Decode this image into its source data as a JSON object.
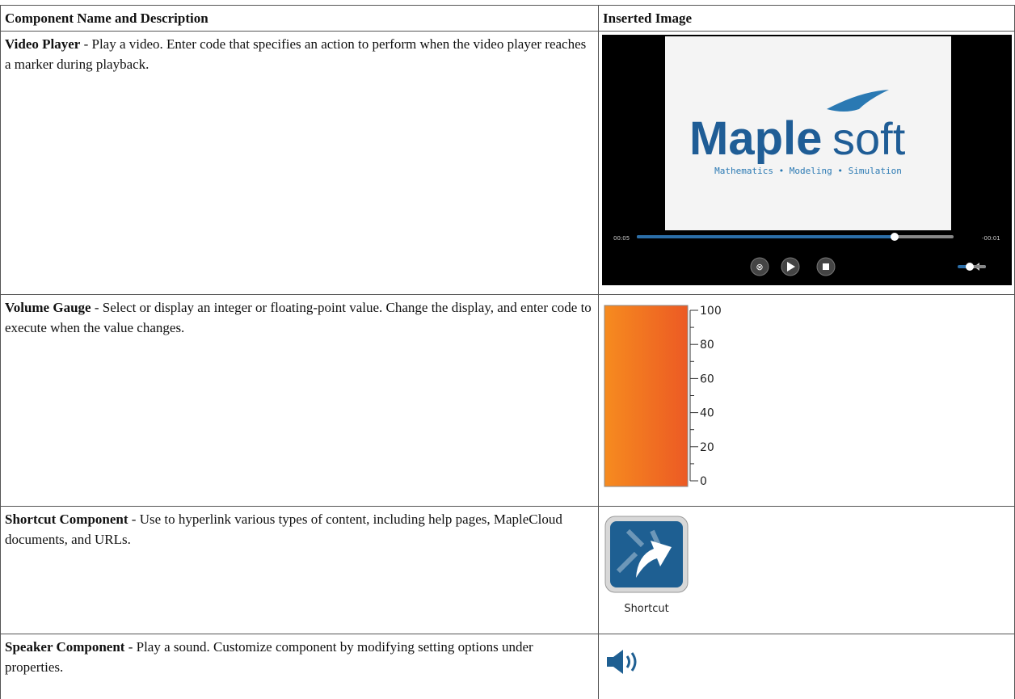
{
  "header": {
    "columns": [
      "Component Name and Description",
      "Inserted Image"
    ]
  },
  "rows": [
    {
      "name": "Video Player",
      "separator": " - ",
      "description": "Play a video. Enter code that specifies an action to perform when the video player reaches a marker during playback."
    },
    {
      "name": "Volume Gauge",
      "separator": " - ",
      "description": "Select or display an integer or floating-point value. Change the display, and enter code to execute when the value changes."
    },
    {
      "name": "Shortcut Component",
      "separator": " - ",
      "description": "Use to hyperlink various types of content, including help pages, MapleCloud documents, and URLs."
    },
    {
      "name": "Speaker Component",
      "separator": " - ",
      "description": "Play a sound. Customize component by modifying setting options under properties."
    }
  ],
  "video": {
    "brand_bold": "Maple",
    "brand_light": "soft",
    "tagline": "Mathematics • Modeling • Simulation",
    "elapsed": "00:05",
    "remaining": "-00:01"
  },
  "gauge": {
    "ticks": [
      100,
      80,
      60,
      40,
      20,
      0
    ]
  },
  "shortcut": {
    "label": "Shortcut"
  }
}
